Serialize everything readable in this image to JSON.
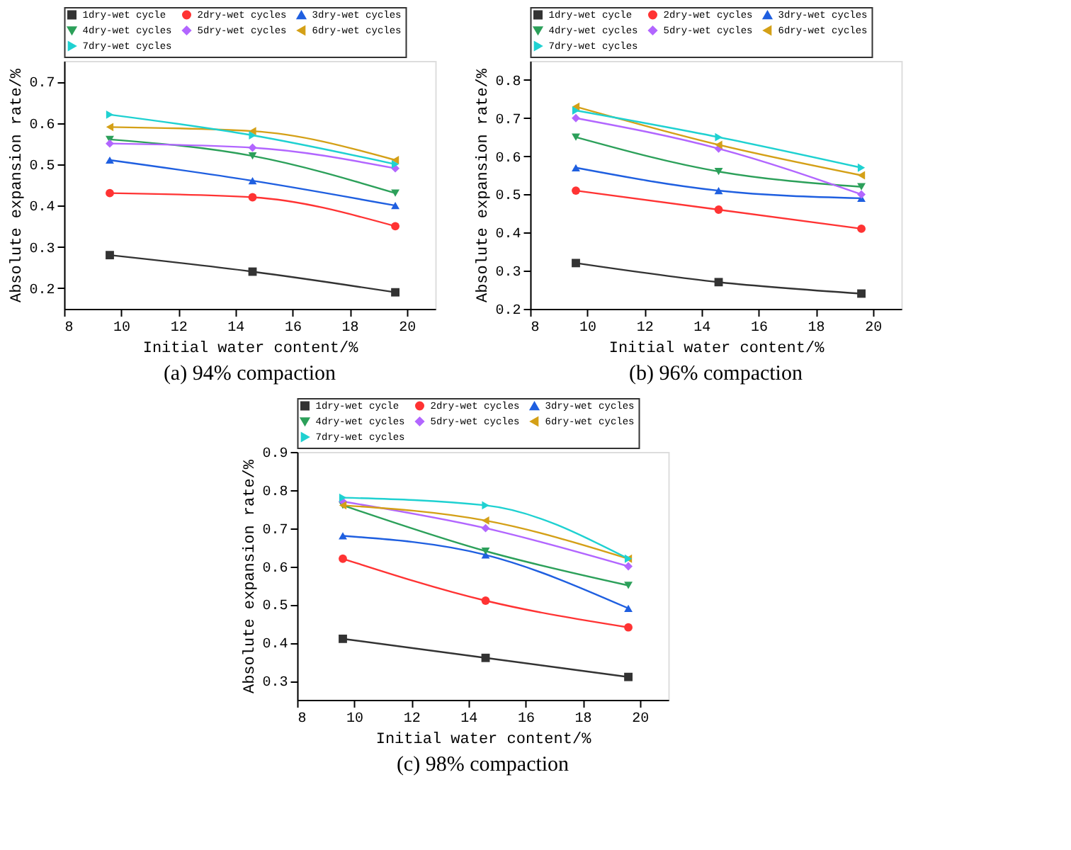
{
  "chart_data": [
    {
      "type": "line",
      "title": "(a) 94% compaction",
      "xlabel": "Initial water content/%",
      "ylabel": "Absolute expansion rate/%",
      "x": [
        9.6,
        14.6,
        19.6
      ],
      "xlim": [
        8,
        21
      ],
      "xticks": [
        8,
        10,
        12,
        14,
        16,
        18,
        20
      ],
      "ylim": [
        0.15,
        0.75
      ],
      "yticks": [
        0.2,
        0.3,
        0.4,
        0.5,
        0.6,
        0.7
      ],
      "grid": false,
      "legend": "top",
      "line_style": "solid",
      "series": [
        {
          "name": "1dry-wet cycle",
          "color": "#333333",
          "marker": "square",
          "values": [
            0.28,
            0.24,
            0.19
          ]
        },
        {
          "name": "2dry-wet cycles",
          "color": "#ff3333",
          "marker": "circle",
          "values": [
            0.43,
            0.42,
            0.35
          ]
        },
        {
          "name": "3dry-wet cycles",
          "color": "#1f5fe0",
          "marker": "triangle",
          "values": [
            0.51,
            0.46,
            0.4
          ]
        },
        {
          "name": "4dry-wet cycles",
          "color": "#2ca05a",
          "marker": "triangle-down",
          "values": [
            0.56,
            0.52,
            0.43
          ]
        },
        {
          "name": "5dry-wet cycles",
          "color": "#b266ff",
          "marker": "diamond",
          "values": [
            0.55,
            0.54,
            0.49
          ]
        },
        {
          "name": "6dry-wet cycles",
          "color": "#d4a017",
          "marker": "triangle-left",
          "values": [
            0.59,
            0.58,
            0.51
          ]
        },
        {
          "name": "7dry-wet cycles",
          "color": "#1fd1d1",
          "marker": "triangle-right",
          "values": [
            0.62,
            0.57,
            0.5
          ]
        }
      ]
    },
    {
      "type": "line",
      "title": "(b) 96% compaction",
      "xlabel": "Initial water content/%",
      "ylabel": "Absolute expansion rate/%",
      "x": [
        9.6,
        14.6,
        19.6
      ],
      "xlim": [
        8,
        21
      ],
      "xticks": [
        8,
        10,
        12,
        14,
        16,
        18,
        20
      ],
      "ylim": [
        0.2,
        0.85
      ],
      "yticks": [
        0.2,
        0.3,
        0.4,
        0.5,
        0.6,
        0.7,
        0.8
      ],
      "grid": false,
      "legend": "top",
      "line_style": "solid",
      "series": [
        {
          "name": "1dry-wet cycle",
          "color": "#333333",
          "marker": "square",
          "values": [
            0.32,
            0.27,
            0.24
          ]
        },
        {
          "name": "2dry-wet cycles",
          "color": "#ff3333",
          "marker": "circle",
          "values": [
            0.51,
            0.46,
            0.41
          ]
        },
        {
          "name": "3dry-wet cycles",
          "color": "#1f5fe0",
          "marker": "triangle",
          "values": [
            0.57,
            0.51,
            0.49
          ]
        },
        {
          "name": "4dry-wet cycles",
          "color": "#2ca05a",
          "marker": "triangle-down",
          "values": [
            0.65,
            0.56,
            0.52
          ]
        },
        {
          "name": "5dry-wet cycles",
          "color": "#b266ff",
          "marker": "diamond",
          "values": [
            0.7,
            0.62,
            0.5
          ]
        },
        {
          "name": "6dry-wet cycles",
          "color": "#d4a017",
          "marker": "triangle-left",
          "values": [
            0.73,
            0.63,
            0.55
          ]
        },
        {
          "name": "7dry-wet cycles",
          "color": "#1fd1d1",
          "marker": "triangle-right",
          "values": [
            0.72,
            0.65,
            0.57
          ]
        }
      ]
    },
    {
      "type": "line",
      "title": "(c) 98% compaction",
      "xlabel": "Initial water content/%",
      "ylabel": "Absolute expansion rate/%",
      "x": [
        9.6,
        14.6,
        19.6
      ],
      "xlim": [
        8,
        21
      ],
      "xticks": [
        8,
        10,
        12,
        14,
        16,
        18,
        20
      ],
      "ylim": [
        0.25,
        0.9
      ],
      "yticks": [
        0.3,
        0.4,
        0.5,
        0.6,
        0.7,
        0.8,
        0.9
      ],
      "grid": false,
      "legend": "top",
      "line_style": "solid",
      "series": [
        {
          "name": "1dry-wet cycle",
          "color": "#333333",
          "marker": "square",
          "values": [
            0.41,
            0.36,
            0.31
          ]
        },
        {
          "name": "2dry-wet cycles",
          "color": "#ff3333",
          "marker": "circle",
          "values": [
            0.62,
            0.51,
            0.44
          ]
        },
        {
          "name": "3dry-wet cycles",
          "color": "#1f5fe0",
          "marker": "triangle",
          "values": [
            0.68,
            0.63,
            0.49
          ]
        },
        {
          "name": "4dry-wet cycles",
          "color": "#2ca05a",
          "marker": "triangle-down",
          "values": [
            0.76,
            0.64,
            0.55
          ]
        },
        {
          "name": "5dry-wet cycles",
          "color": "#b266ff",
          "marker": "diamond",
          "values": [
            0.77,
            0.7,
            0.6
          ]
        },
        {
          "name": "6dry-wet cycles",
          "color": "#d4a017",
          "marker": "triangle-left",
          "values": [
            0.76,
            0.72,
            0.62
          ]
        },
        {
          "name": "7dry-wet cycles",
          "color": "#1fd1d1",
          "marker": "triangle-right",
          "values": [
            0.78,
            0.76,
            0.62
          ]
        }
      ]
    }
  ]
}
